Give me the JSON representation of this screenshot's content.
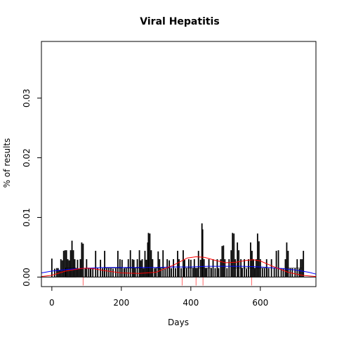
{
  "chart_data": {
    "type": "bar",
    "title": "Viral Hepatitis",
    "xlabel": "Days",
    "ylabel": "% of results",
    "xlim": [
      -30,
      760
    ],
    "ylim": [
      -0.0016,
      0.0395
    ],
    "x_ticks": [
      0,
      200,
      400,
      600
    ],
    "x_tick_labels": [
      "0",
      "200",
      "400",
      "600"
    ],
    "y_ticks": [
      0.0,
      0.01,
      0.02,
      0.03
    ],
    "y_tick_labels": [
      "0.00",
      "0.01",
      "0.02",
      "0.03"
    ],
    "grid": false,
    "legend": "none",
    "bar_color": "#000000",
    "bars": [
      [
        0,
        0.0031
      ],
      [
        8,
        0.0014
      ],
      [
        14,
        0.0015
      ],
      [
        18,
        0.0015
      ],
      [
        22,
        0.0012
      ],
      [
        26,
        0.003
      ],
      [
        30,
        0.0028
      ],
      [
        34,
        0.0044
      ],
      [
        38,
        0.0045
      ],
      [
        42,
        0.0045
      ],
      [
        46,
        0.003
      ],
      [
        50,
        0.0028
      ],
      [
        54,
        0.0045
      ],
      [
        58,
        0.0061
      ],
      [
        62,
        0.0045
      ],
      [
        66,
        0.003
      ],
      [
        70,
        0.0015
      ],
      [
        74,
        0.0029
      ],
      [
        78,
        0.0014
      ],
      [
        82,
        0.003
      ],
      [
        86,
        0.0058
      ],
      [
        90,
        0.0056
      ],
      [
        96,
        0.0015
      ],
      [
        100,
        0.003
      ],
      [
        106,
        0.0015
      ],
      [
        112,
        0.0014
      ],
      [
        118,
        0.0015
      ],
      [
        126,
        0.0044
      ],
      [
        132,
        0.0015
      ],
      [
        140,
        0.0029
      ],
      [
        146,
        0.0015
      ],
      [
        152,
        0.0044
      ],
      [
        158,
        0.0015
      ],
      [
        164,
        0.0015
      ],
      [
        170,
        0.0015
      ],
      [
        176,
        0.0014
      ],
      [
        184,
        0.0015
      ],
      [
        190,
        0.0044
      ],
      [
        196,
        0.003
      ],
      [
        202,
        0.0029
      ],
      [
        208,
        0.0015
      ],
      [
        214,
        0.0015
      ],
      [
        220,
        0.003
      ],
      [
        226,
        0.0045
      ],
      [
        232,
        0.003
      ],
      [
        236,
        0.0029
      ],
      [
        240,
        0.0015
      ],
      [
        246,
        0.003
      ],
      [
        252,
        0.0045
      ],
      [
        256,
        0.0028
      ],
      [
        260,
        0.003
      ],
      [
        264,
        0.0015
      ],
      [
        268,
        0.0044
      ],
      [
        272,
        0.0029
      ],
      [
        276,
        0.0058
      ],
      [
        278,
        0.0074
      ],
      [
        282,
        0.0073
      ],
      [
        286,
        0.0045
      ],
      [
        290,
        0.003
      ],
      [
        296,
        0.0015
      ],
      [
        300,
        0.0015
      ],
      [
        306,
        0.0043
      ],
      [
        310,
        0.003
      ],
      [
        314,
        0.0015
      ],
      [
        320,
        0.0045
      ],
      [
        326,
        0.0015
      ],
      [
        332,
        0.003
      ],
      [
        338,
        0.0028
      ],
      [
        344,
        0.0015
      ],
      [
        350,
        0.003
      ],
      [
        356,
        0.0015
      ],
      [
        362,
        0.0044
      ],
      [
        366,
        0.003
      ],
      [
        372,
        0.0015
      ],
      [
        378,
        0.0045
      ],
      [
        382,
        0.0029
      ],
      [
        388,
        0.0015
      ],
      [
        394,
        0.003
      ],
      [
        400,
        0.0029
      ],
      [
        406,
        0.0015
      ],
      [
        410,
        0.003
      ],
      [
        414,
        0.0015
      ],
      [
        418,
        0.0015
      ],
      [
        422,
        0.0044
      ],
      [
        428,
        0.0029
      ],
      [
        432,
        0.009
      ],
      [
        434,
        0.008
      ],
      [
        438,
        0.003
      ],
      [
        442,
        0.0015
      ],
      [
        446,
        0.0015
      ],
      [
        452,
        0.003
      ],
      [
        458,
        0.0015
      ],
      [
        464,
        0.003
      ],
      [
        470,
        0.0015
      ],
      [
        476,
        0.003
      ],
      [
        480,
        0.0015
      ],
      [
        486,
        0.003
      ],
      [
        490,
        0.0052
      ],
      [
        494,
        0.0053
      ],
      [
        498,
        0.003
      ],
      [
        504,
        0.0015
      ],
      [
        510,
        0.003
      ],
      [
        516,
        0.0045
      ],
      [
        520,
        0.0074
      ],
      [
        524,
        0.0073
      ],
      [
        528,
        0.003
      ],
      [
        534,
        0.0058
      ],
      [
        538,
        0.0045
      ],
      [
        544,
        0.003
      ],
      [
        548,
        0.0015
      ],
      [
        554,
        0.003
      ],
      [
        560,
        0.0014
      ],
      [
        566,
        0.003
      ],
      [
        572,
        0.0058
      ],
      [
        576,
        0.0044
      ],
      [
        580,
        0.003
      ],
      [
        584,
        0.0015
      ],
      [
        588,
        0.003
      ],
      [
        592,
        0.0073
      ],
      [
        596,
        0.006
      ],
      [
        600,
        0.003
      ],
      [
        606,
        0.0015
      ],
      [
        612,
        0.0015
      ],
      [
        618,
        0.003
      ],
      [
        624,
        0.0015
      ],
      [
        632,
        0.003
      ],
      [
        640,
        0.0015
      ],
      [
        646,
        0.0044
      ],
      [
        652,
        0.0045
      ],
      [
        660,
        0.0015
      ],
      [
        666,
        0.0015
      ],
      [
        672,
        0.003
      ],
      [
        676,
        0.0058
      ],
      [
        680,
        0.0044
      ],
      [
        686,
        0.0015
      ],
      [
        692,
        0.0015
      ],
      [
        700,
        0.0015
      ],
      [
        706,
        0.003
      ],
      [
        712,
        0.0014
      ],
      [
        716,
        0.003
      ],
      [
        720,
        0.003
      ],
      [
        724,
        0.0044
      ]
    ],
    "baseline_segments_color": "#000000",
    "baseline_segment_x": [
      [
        40,
        70
      ],
      [
        100,
        110
      ],
      [
        150,
        200
      ],
      [
        210,
        260
      ],
      [
        300,
        340
      ],
      [
        380,
        460
      ],
      [
        520,
        620
      ],
      [
        680,
        720
      ]
    ],
    "baseline_segment_height": 0.0015,
    "smooth_lines": [
      {
        "color": "#0000ff",
        "points": [
          [
            -30,
            0.0007
          ],
          [
            0,
            0.001
          ],
          [
            50,
            0.0013
          ],
          [
            100,
            0.0015
          ],
          [
            150,
            0.0016
          ],
          [
            200,
            0.0016
          ],
          [
            250,
            0.0016
          ],
          [
            300,
            0.0016
          ],
          [
            350,
            0.0017
          ],
          [
            400,
            0.0017
          ],
          [
            450,
            0.0018
          ],
          [
            500,
            0.0018
          ],
          [
            550,
            0.0018
          ],
          [
            600,
            0.0017
          ],
          [
            650,
            0.0015
          ],
          [
            700,
            0.0012
          ],
          [
            740,
            0.0008
          ],
          [
            760,
            0.0005
          ]
        ]
      },
      {
        "color": "#ff0000",
        "points": [
          [
            -30,
            0.0001
          ],
          [
            0,
            0.0003
          ],
          [
            40,
            0.001
          ],
          [
            80,
            0.0014
          ],
          [
            100,
            0.0015
          ],
          [
            120,
            0.0014
          ],
          [
            150,
            0.0011
          ],
          [
            200,
            0.0007
          ],
          [
            250,
            0.0006
          ],
          [
            300,
            0.0008
          ],
          [
            350,
            0.002
          ],
          [
            390,
            0.0032
          ],
          [
            415,
            0.0034
          ],
          [
            440,
            0.0033
          ],
          [
            470,
            0.0028
          ],
          [
            500,
            0.0024
          ],
          [
            530,
            0.0025
          ],
          [
            560,
            0.0028
          ],
          [
            580,
            0.0029
          ],
          [
            600,
            0.0027
          ],
          [
            640,
            0.0017
          ],
          [
            680,
            0.0008
          ],
          [
            720,
            0.0003
          ],
          [
            760,
            0.0001
          ]
        ]
      }
    ],
    "red_ticks": [
      90,
      375,
      415,
      435,
      575
    ]
  }
}
